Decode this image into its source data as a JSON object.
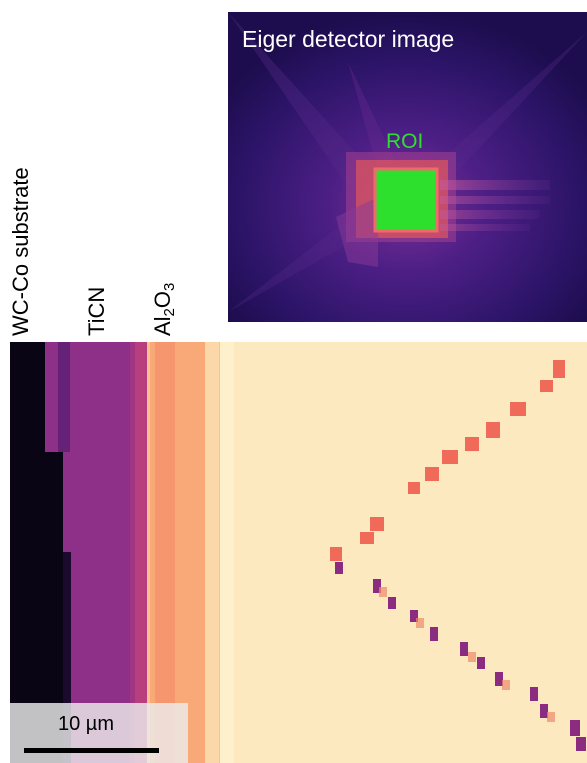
{
  "labels": {
    "substrate": "WC-Co substrate",
    "ticn": "TiCN",
    "al2o3_prefix": "Al",
    "al2o3_sub1": "2",
    "al2o3_mid": "O",
    "al2o3_sub2": "3"
  },
  "detector": {
    "title": "Eiger detector image",
    "roi_label": "ROI"
  },
  "scalebar": {
    "label": "10 µm"
  },
  "colors": {
    "substrate": "#0a0514",
    "ticn": "#8e2f88",
    "al2o3": "#f9b282",
    "matrix": "#fde9c0",
    "grain_boundary_red": "#f06a5a",
    "grain_boundary_purple": "#8c2c80",
    "detector_bg": "#2a1260",
    "roi_green": "#2ee02e"
  }
}
